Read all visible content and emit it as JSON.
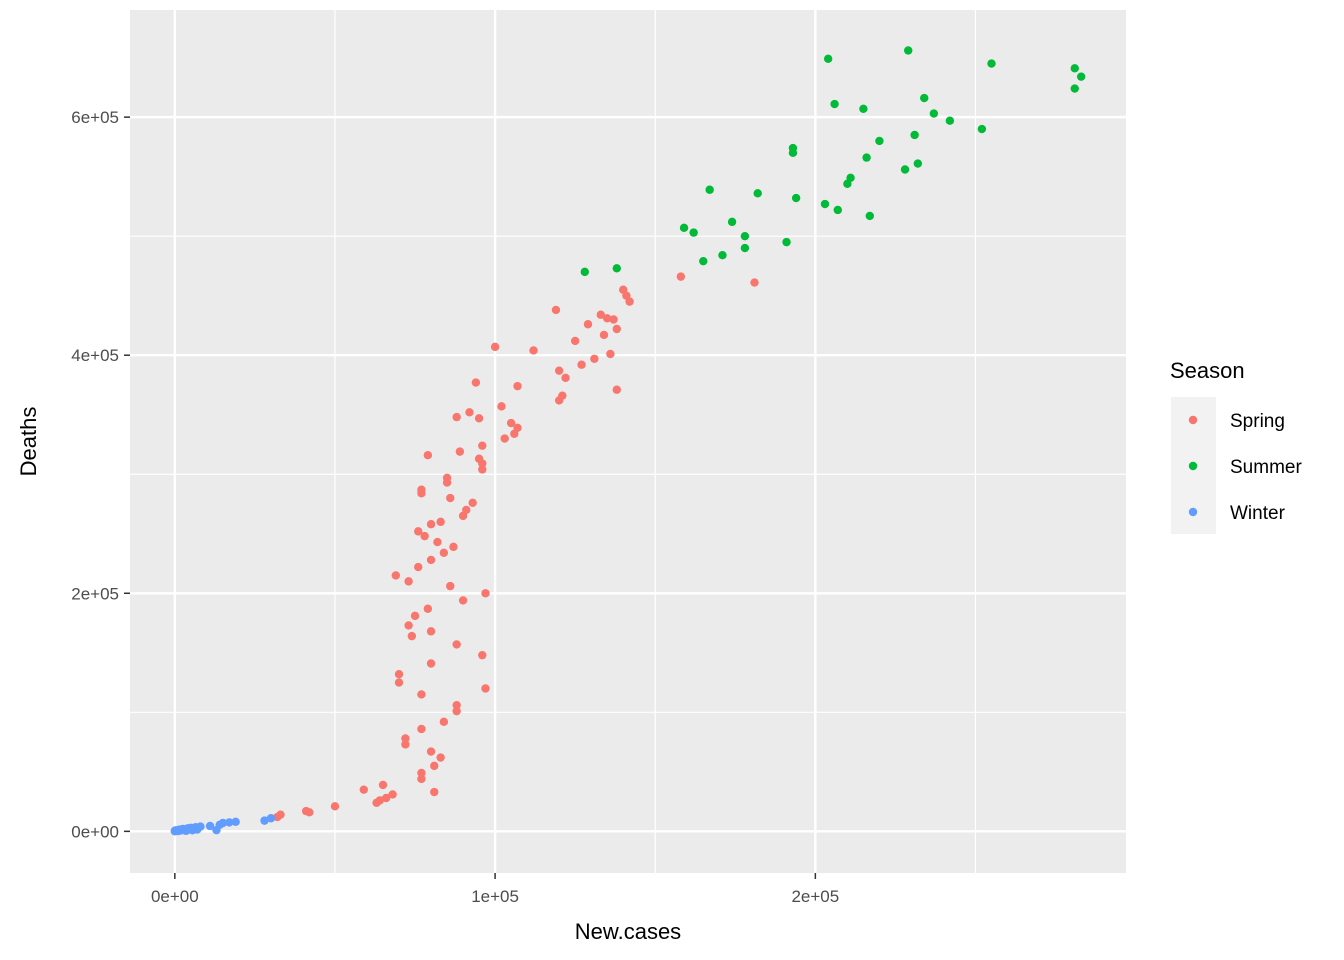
{
  "chart_data": {
    "type": "scatter",
    "xlabel": "New.cases",
    "ylabel": "Deaths",
    "xlim": [
      -14000,
      297000
    ],
    "ylim": [
      -35000,
      690000
    ],
    "x_ticks": [
      {
        "value": 0,
        "label": "0e+00"
      },
      {
        "value": 100000,
        "label": "1e+05"
      },
      {
        "value": 200000,
        "label": "2e+05"
      }
    ],
    "y_ticks": [
      {
        "value": 0,
        "label": "0e+00"
      },
      {
        "value": 200000,
        "label": "2e+05"
      },
      {
        "value": 400000,
        "label": "4e+05"
      },
      {
        "value": 600000,
        "label": "6e+05"
      }
    ],
    "x_minor": [
      50000,
      150000,
      250000
    ],
    "y_minor": [
      100000,
      300000,
      500000
    ],
    "grid": true,
    "legend": {
      "title": "Season",
      "position": "right"
    },
    "series": [
      {
        "name": "Spring",
        "color": "#F8766D",
        "points": [
          [
            32000,
            12000
          ],
          [
            33000,
            14000
          ],
          [
            41000,
            17000
          ],
          [
            42000,
            16000
          ],
          [
            50000,
            21000
          ],
          [
            59000,
            35000
          ],
          [
            63000,
            24000
          ],
          [
            64000,
            26000
          ],
          [
            65000,
            39000
          ],
          [
            66000,
            28000
          ],
          [
            68000,
            31000
          ],
          [
            69000,
            215000
          ],
          [
            70000,
            132000
          ],
          [
            70000,
            125000
          ],
          [
            72000,
            73000
          ],
          [
            72000,
            78000
          ],
          [
            73000,
            210000
          ],
          [
            73000,
            173000
          ],
          [
            74000,
            164000
          ],
          [
            75000,
            181000
          ],
          [
            76000,
            222000
          ],
          [
            76000,
            252000
          ],
          [
            77000,
            284000
          ],
          [
            77000,
            287000
          ],
          [
            77000,
            49000
          ],
          [
            77000,
            44000
          ],
          [
            77000,
            86000
          ],
          [
            77000,
            115000
          ],
          [
            78000,
            248000
          ],
          [
            79000,
            316000
          ],
          [
            79000,
            187000
          ],
          [
            80000,
            228000
          ],
          [
            80000,
            258000
          ],
          [
            80000,
            168000
          ],
          [
            80000,
            141000
          ],
          [
            80000,
            67000
          ],
          [
            81000,
            55000
          ],
          [
            81000,
            33000
          ],
          [
            82000,
            243000
          ],
          [
            83000,
            62000
          ],
          [
            83000,
            260000
          ],
          [
            84000,
            92000
          ],
          [
            84000,
            234000
          ],
          [
            85000,
            293000
          ],
          [
            85000,
            297000
          ],
          [
            86000,
            206000
          ],
          [
            86000,
            280000
          ],
          [
            87000,
            239000
          ],
          [
            88000,
            348000
          ],
          [
            88000,
            106000
          ],
          [
            88000,
            101000
          ],
          [
            88000,
            157000
          ],
          [
            89000,
            319000
          ],
          [
            90000,
            194000
          ],
          [
            90000,
            265000
          ],
          [
            91000,
            270000
          ],
          [
            92000,
            352000
          ],
          [
            93000,
            276000
          ],
          [
            94000,
            377000
          ],
          [
            95000,
            347000
          ],
          [
            95000,
            313000
          ],
          [
            96000,
            324000
          ],
          [
            96000,
            309000
          ],
          [
            96000,
            304000
          ],
          [
            96000,
            148000
          ],
          [
            97000,
            200000
          ],
          [
            97000,
            120000
          ],
          [
            100000,
            407000
          ],
          [
            102000,
            357000
          ],
          [
            103000,
            330000
          ],
          [
            105000,
            343000
          ],
          [
            106000,
            334000
          ],
          [
            107000,
            339000
          ],
          [
            107000,
            374000
          ],
          [
            112000,
            404000
          ],
          [
            119000,
            438000
          ],
          [
            120000,
            387000
          ],
          [
            120000,
            362000
          ],
          [
            121000,
            366000
          ],
          [
            122000,
            381000
          ],
          [
            125000,
            412000
          ],
          [
            127000,
            392000
          ],
          [
            129000,
            426000
          ],
          [
            131000,
            397000
          ],
          [
            133000,
            434000
          ],
          [
            134000,
            417000
          ],
          [
            135000,
            431000
          ],
          [
            136000,
            401000
          ],
          [
            137000,
            430000
          ],
          [
            138000,
            371000
          ],
          [
            138000,
            422000
          ],
          [
            140000,
            455000
          ],
          [
            141000,
            450000
          ],
          [
            142000,
            445000
          ],
          [
            158000,
            466000
          ],
          [
            181000,
            461000
          ]
        ]
      },
      {
        "name": "Summer",
        "color": "#00BA38",
        "points": [
          [
            128000,
            470000
          ],
          [
            138000,
            473000
          ],
          [
            159000,
            507000
          ],
          [
            162000,
            503000
          ],
          [
            165000,
            479000
          ],
          [
            167000,
            539000
          ],
          [
            171000,
            484000
          ],
          [
            174000,
            512000
          ],
          [
            178000,
            490000
          ],
          [
            178000,
            500000
          ],
          [
            182000,
            536000
          ],
          [
            191000,
            495000
          ],
          [
            193000,
            574000
          ],
          [
            193000,
            570000
          ],
          [
            194000,
            532000
          ],
          [
            204000,
            649000
          ],
          [
            203000,
            527000
          ],
          [
            206000,
            611000
          ],
          [
            207000,
            522000
          ],
          [
            210000,
            544000
          ],
          [
            211000,
            549000
          ],
          [
            215000,
            607000
          ],
          [
            216000,
            566000
          ],
          [
            217000,
            517000
          ],
          [
            220000,
            580000
          ],
          [
            228000,
            556000
          ],
          [
            229000,
            656000
          ],
          [
            231000,
            585000
          ],
          [
            232000,
            561000
          ],
          [
            234000,
            616000
          ],
          [
            237000,
            603000
          ],
          [
            242000,
            597000
          ],
          [
            252000,
            590000
          ],
          [
            255000,
            645000
          ],
          [
            281000,
            641000
          ],
          [
            281000,
            624000
          ],
          [
            283000,
            634000
          ]
        ]
      },
      {
        "name": "Winter",
        "color": "#619CFF",
        "points": [
          [
            0,
            0
          ],
          [
            0,
            500
          ],
          [
            500,
            1000
          ],
          [
            1000,
            200
          ],
          [
            1500,
            1500
          ],
          [
            2000,
            800
          ],
          [
            2500,
            2000
          ],
          [
            3000,
            1200
          ],
          [
            3500,
            400
          ],
          [
            4000,
            2500
          ],
          [
            4500,
            1800
          ],
          [
            5000,
            3000
          ],
          [
            5500,
            900
          ],
          [
            6000,
            2200
          ],
          [
            6500,
            3500
          ],
          [
            7000,
            1500
          ],
          [
            8000,
            4000
          ],
          [
            11000,
            4500
          ],
          [
            13000,
            1000
          ],
          [
            14000,
            5500
          ],
          [
            15000,
            7000
          ],
          [
            17000,
            7500
          ],
          [
            19000,
            8000
          ],
          [
            28000,
            9000
          ],
          [
            30000,
            11000
          ]
        ]
      }
    ]
  }
}
